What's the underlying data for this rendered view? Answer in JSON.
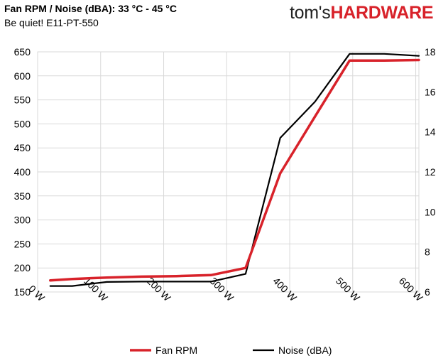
{
  "header": {
    "title": "Fan RPM / Noise (dBA): 33 °C - 45 °C",
    "subtitle": "Be quiet! E11-PT-550",
    "logo_text_1": "tom's",
    "logo_text_2": "HARDWARE",
    "logo_color_1": "#222222",
    "logo_color_2": "#d8222a"
  },
  "chart_data": {
    "type": "line",
    "title": "Fan RPM / Noise (dBA): 33 °C - 45 °C",
    "subtitle": "Be quiet! E11-PT-550",
    "x": [
      20,
      55,
      110,
      165,
      220,
      275,
      330,
      385,
      440,
      495,
      550,
      605
    ],
    "x_ticks": [
      0,
      100,
      200,
      300,
      400,
      500,
      600
    ],
    "x_tick_labels": [
      "0 W",
      "100 W",
      "200 W",
      "300 W",
      "400 W",
      "500 W",
      "600 W"
    ],
    "xlim": [
      0,
      605
    ],
    "ylim_left": [
      150,
      650
    ],
    "y_left_ticks": [
      150,
      200,
      250,
      300,
      350,
      400,
      450,
      500,
      550,
      600,
      650
    ],
    "ylim_right": [
      6,
      18
    ],
    "y_right_ticks": [
      6,
      8,
      10,
      12,
      14,
      16,
      18
    ],
    "grid": true,
    "legend_position": "bottom",
    "series": [
      {
        "name": "Fan RPM",
        "axis": "left",
        "color": "#d8222a",
        "values": [
          174,
          177,
          180,
          182,
          183,
          185,
          200,
          397,
          515,
          632,
          632,
          633
        ]
      },
      {
        "name": "Noise (dBA)",
        "axis": "right",
        "color": "#000000",
        "values": [
          6.3,
          6.3,
          6.5,
          6.52,
          6.52,
          6.52,
          6.9,
          13.7,
          15.5,
          17.9,
          17.9,
          17.8
        ]
      }
    ]
  }
}
